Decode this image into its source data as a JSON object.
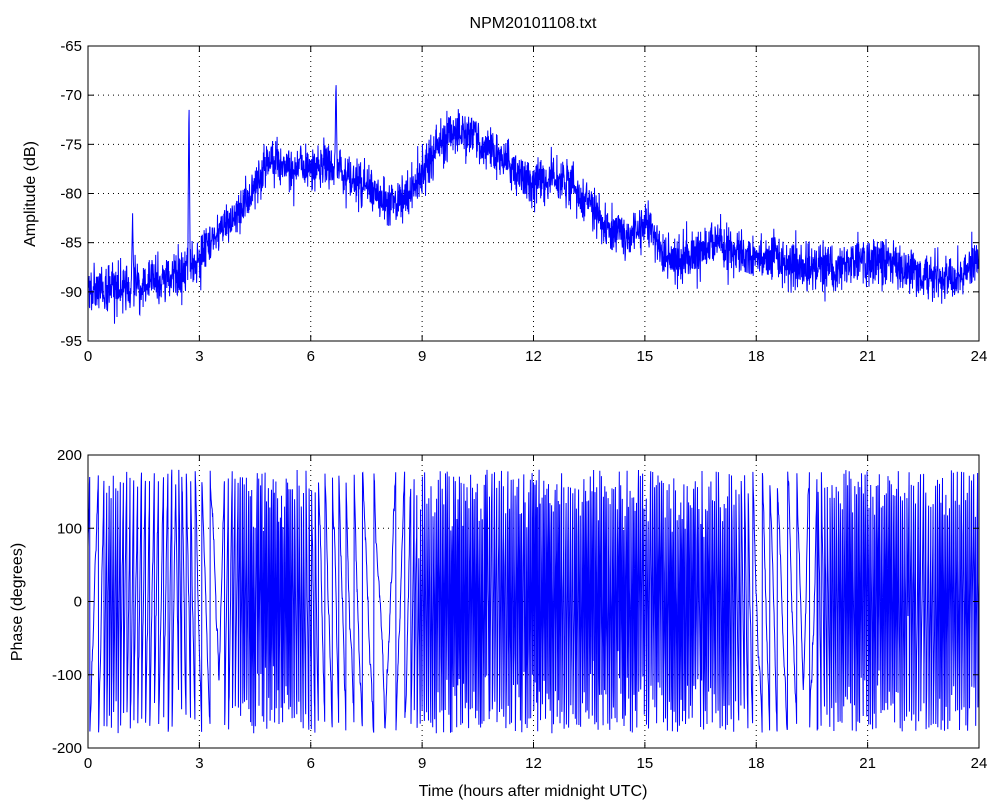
{
  "chart_data": [
    {
      "type": "line",
      "title": "NPM20101108.txt",
      "xlabel": "",
      "ylabel": "Amplitude (dB)",
      "xlim": [
        0,
        24
      ],
      "ylim": [
        -95,
        -65
      ],
      "xticks": [
        0,
        3,
        6,
        9,
        12,
        15,
        18,
        21,
        24
      ],
      "yticks": [
        -95,
        -90,
        -85,
        -80,
        -75,
        -70,
        -65
      ],
      "grid": true,
      "series": [
        {
          "color": "#0000ff",
          "noise": 1.6,
          "x": [
            0,
            0.5,
            1,
            1.5,
            2,
            2.5,
            2.75,
            3,
            3.5,
            4,
            4.5,
            4.8,
            5,
            5.5,
            6,
            6.5,
            7,
            7.5,
            8,
            8.5,
            9,
            9.5,
            10,
            10.5,
            11,
            11.5,
            12,
            12.5,
            13,
            13.5,
            14,
            14.5,
            15,
            15.3,
            15.5,
            16,
            16.5,
            17,
            17.3,
            18,
            18.5,
            19,
            19.5,
            20,
            20.5,
            21,
            21.5,
            22,
            22.5,
            23,
            23.5,
            24
          ],
          "y": [
            -89.5,
            -90,
            -89.5,
            -89,
            -89,
            -88,
            -87.5,
            -86.5,
            -84,
            -82,
            -79.5,
            -77,
            -76.5,
            -77.5,
            -77.5,
            -77,
            -78,
            -79.5,
            -80.5,
            -80.5,
            -78,
            -74.5,
            -74,
            -74.5,
            -76,
            -77.5,
            -79,
            -78.5,
            -79,
            -81,
            -84,
            -84.5,
            -83,
            -84.5,
            -86.5,
            -87,
            -86,
            -84.5,
            -86,
            -86.5,
            -86.5,
            -87.5,
            -87.5,
            -87.5,
            -87,
            -87,
            -87,
            -87.5,
            -88.5,
            -88.5,
            -88,
            -87
          ]
        }
      ],
      "spikes": [
        {
          "x": 2.72,
          "y": -70.2
        },
        {
          "x": 6.68,
          "y": -68.3
        },
        {
          "x": 1.2,
          "y": -82.0
        }
      ]
    },
    {
      "type": "line",
      "title": "",
      "xlabel": "Time (hours after midnight UTC)",
      "ylabel": "Phase (degrees)",
      "xlim": [
        0,
        24
      ],
      "ylim": [
        -200,
        200
      ],
      "xticks": [
        0,
        3,
        6,
        9,
        12,
        15,
        18,
        21,
        24
      ],
      "yticks": [
        -200,
        -100,
        0,
        100,
        200
      ],
      "grid": true,
      "series": [
        {
          "color": "#0000ff",
          "wrap": [
            -180,
            180
          ],
          "x": [
            0,
            0.3,
            0.6,
            1,
            1.5,
            2,
            2.5,
            3,
            3.3,
            3.6,
            4,
            4.4,
            5,
            5.5,
            6,
            6.4,
            7,
            7.5,
            8,
            8.5,
            9,
            9.5,
            10,
            10.5,
            11,
            11.5,
            12,
            12.5,
            13,
            13.5,
            14,
            14.5,
            15,
            15.5,
            16,
            16.5,
            17,
            17.5,
            18,
            18.5,
            19,
            19.5,
            20,
            20.5,
            21,
            21.5,
            22,
            22.5,
            23,
            23.5,
            24
          ],
          "rate": [
            0.5,
            0.5,
            2.2,
            1.5,
            1.2,
            0.9,
            1.4,
            0.6,
            0.4,
            0.6,
            1.8,
            2.6,
            3.0,
            2.6,
            1.4,
            0.6,
            0.6,
            0.5,
            0.4,
            0.5,
            2.2,
            2.4,
            3.0,
            2.8,
            2.0,
            2.6,
            3.0,
            2.8,
            2.2,
            2.8,
            2.6,
            2.9,
            2.4,
            2.6,
            2.8,
            2.6,
            2.8,
            1.8,
            0.6,
            0.6,
            0.5,
            0.6,
            2.2,
            2.6,
            2.6,
            2.8,
            2.2,
            1.6,
            2.6,
            2.2,
            2.4
          ]
        }
      ]
    }
  ]
}
